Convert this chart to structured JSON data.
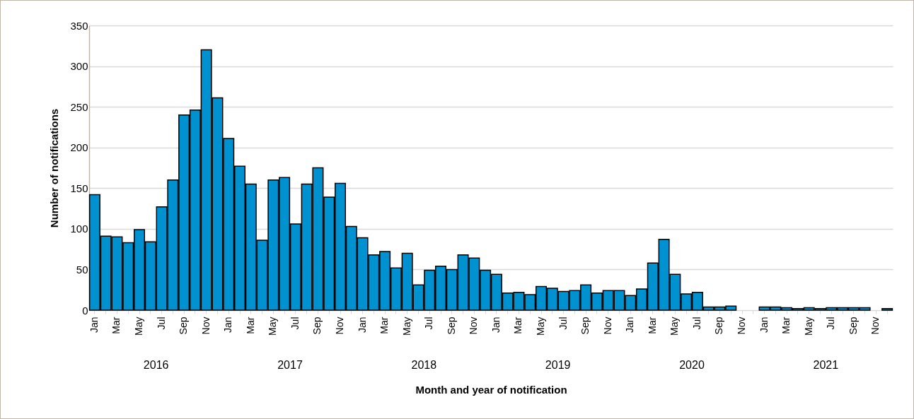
{
  "chart_data": {
    "type": "bar",
    "xlabel": "Month and year of notification",
    "ylabel": "Number of notifications",
    "categories": [
      "Jan",
      null,
      "Mar",
      null,
      "May",
      null,
      "Jul",
      null,
      "Sep",
      null,
      "Nov",
      null,
      "Jan",
      null,
      "Mar",
      null,
      "May",
      null,
      "Jul",
      null,
      "Sep",
      null,
      "Nov",
      null,
      "Jan",
      null,
      "Mar",
      null,
      "May",
      null,
      "Jul",
      null,
      "Sep",
      null,
      "Nov",
      null,
      "Jan",
      null,
      "Mar",
      null,
      "May",
      null,
      "Jul",
      null,
      "Sep",
      null,
      "Nov",
      null,
      "Jan",
      null,
      "Mar",
      null,
      "May",
      null,
      "Jul",
      null,
      "Sep",
      null,
      "Nov",
      null,
      "Jan",
      null,
      "Mar",
      null,
      "May",
      null,
      "Jul",
      null,
      "Sep",
      null,
      "Nov",
      null
    ],
    "values": [
      142,
      91,
      90,
      83,
      99,
      84,
      127,
      160,
      240,
      246,
      320,
      261,
      211,
      177,
      155,
      86,
      160,
      163,
      106,
      155,
      175,
      139,
      156,
      103,
      89,
      68,
      72,
      52,
      70,
      31,
      49,
      54,
      50,
      68,
      64,
      49,
      44,
      21,
      22,
      19,
      29,
      27,
      23,
      24,
      31,
      21,
      24,
      24,
      18,
      26,
      58,
      87,
      44,
      20,
      22,
      4,
      4,
      5,
      0,
      0,
      4,
      4,
      3,
      2,
      3,
      2,
      3,
      3,
      3,
      3,
      0,
      2
    ],
    "color": "#0092d0",
    "annotations": [
      "2016",
      "2017",
      "2018",
      "2019",
      "2020",
      "2021"
    ],
    "ylim": [
      0,
      350
    ],
    "yticks": [
      0,
      50,
      100,
      150,
      200,
      250,
      300,
      350
    ],
    "grid": "y"
  }
}
